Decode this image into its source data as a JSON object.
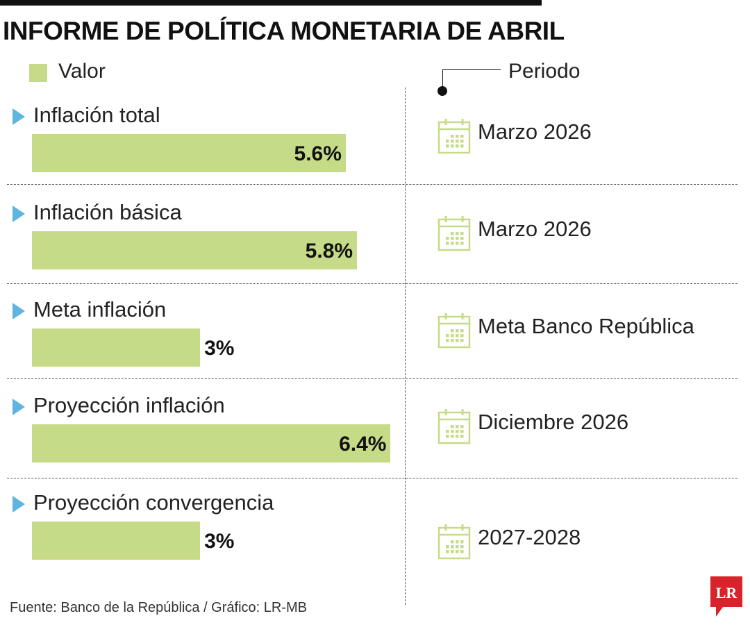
{
  "title": "INFORME DE POLÍTICA MONETARIA DE ABRIL",
  "legend": {
    "value_label": "Valor",
    "period_label": "Periodo"
  },
  "colors": {
    "bar": "#c5db87",
    "arrow": "#5fb4e0",
    "icon": "#c5db87",
    "logo": "#d8232a"
  },
  "chart_data": {
    "type": "bar",
    "orientation": "horizontal",
    "categories": [
      "Inflación total",
      "Inflación básica",
      "Meta inflación",
      "Proyección inflación",
      "Proyección convergencia"
    ],
    "values": [
      5.6,
      5.8,
      3,
      6.4,
      3
    ],
    "value_labels": [
      "5.6%",
      "5.8%",
      "3%",
      "6.4%",
      "3%"
    ],
    "periods": [
      "Marzo 2026",
      "Marzo 2026",
      "Meta Banco República",
      "Diciembre 2026",
      "2027-2028"
    ],
    "title": "INFORME DE POLÍTICA MONETARIA DE ABRIL",
    "legend": [
      "Valor"
    ],
    "grid": false
  },
  "source": "Fuente: Banco de la República / Gráfico: LR-MB",
  "logo": {
    "text": "LR"
  }
}
